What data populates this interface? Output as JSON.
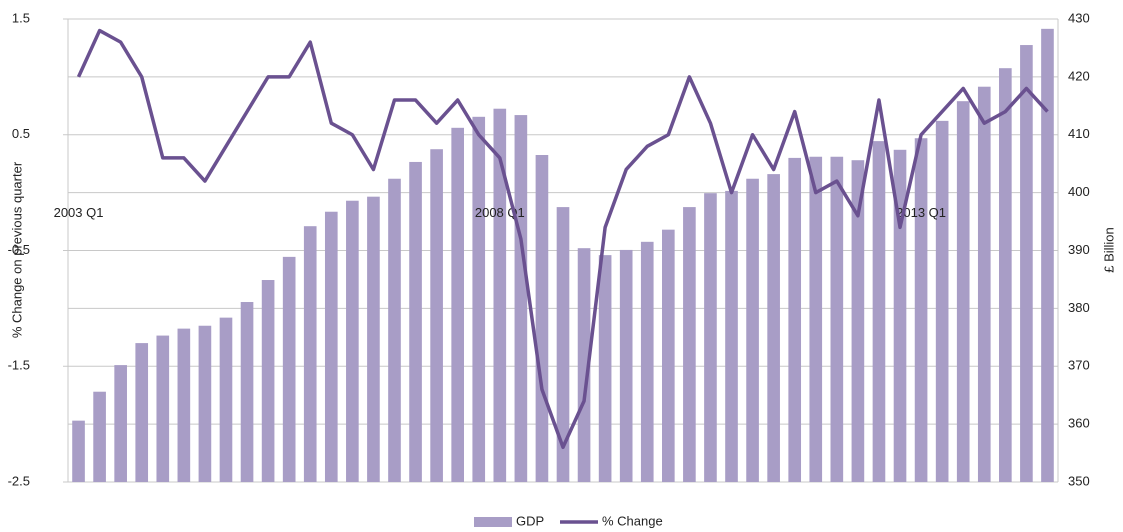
{
  "chart_data": {
    "type": "bar_line",
    "categories": [
      "2003 Q1",
      null,
      null,
      null,
      null,
      null,
      null,
      null,
      null,
      null,
      null,
      null,
      null,
      null,
      null,
      null,
      null,
      null,
      null,
      null,
      "2008 Q1",
      null,
      null,
      null,
      null,
      null,
      null,
      null,
      null,
      null,
      null,
      null,
      null,
      null,
      null,
      null,
      null,
      null,
      null,
      null,
      "2013 Q1",
      null,
      null,
      null,
      null,
      null,
      null
    ],
    "ylabel": "% Change on previous quarter",
    "y2label": "£ Billion",
    "ylim": [
      -2.5,
      1.5
    ],
    "yticks": [
      -2.5,
      -1.5,
      -0.5,
      0.5,
      1.5
    ],
    "y2lim": [
      350,
      430
    ],
    "y2ticks": [
      350,
      360,
      370,
      380,
      390,
      400,
      410,
      420,
      430
    ],
    "grid": true,
    "legend": "bottom",
    "series": [
      {
        "name": "GDP",
        "type": "bar",
        "axis": "y2",
        "color": "#a89dc6",
        "values": [
          360.6,
          365.6,
          370.2,
          374.0,
          375.3,
          376.5,
          377.0,
          378.4,
          381.1,
          384.9,
          388.9,
          394.2,
          396.7,
          398.6,
          399.3,
          402.4,
          405.3,
          407.5,
          411.2,
          413.1,
          414.5,
          413.4,
          406.5,
          397.5,
          390.4,
          389.2,
          390.1,
          391.5,
          393.6,
          397.5,
          399.9,
          400.3,
          402.4,
          403.2,
          406.0,
          406.2,
          406.2,
          405.6,
          408.9,
          407.4,
          409.4,
          412.4,
          415.8,
          418.3,
          421.5,
          425.5,
          428.3
        ]
      },
      {
        "name": "% Change",
        "type": "line",
        "color": "#6a5190",
        "values": [
          1.0,
          1.4,
          1.3,
          1.0,
          0.3,
          0.3,
          0.1,
          0.4,
          0.7,
          1.0,
          1.0,
          1.3,
          0.6,
          0.5,
          0.2,
          0.8,
          0.8,
          0.6,
          0.8,
          0.5,
          0.3,
          -0.4,
          -1.7,
          -2.2,
          -1.8,
          -0.3,
          0.2,
          0.4,
          0.5,
          1.0,
          0.6,
          0.0,
          0.5,
          0.2,
          0.7,
          0.0,
          0.1,
          -0.2,
          0.8,
          -0.3,
          0.5,
          0.7,
          0.9,
          0.6,
          0.7,
          0.9,
          0.7
        ]
      }
    ]
  }
}
